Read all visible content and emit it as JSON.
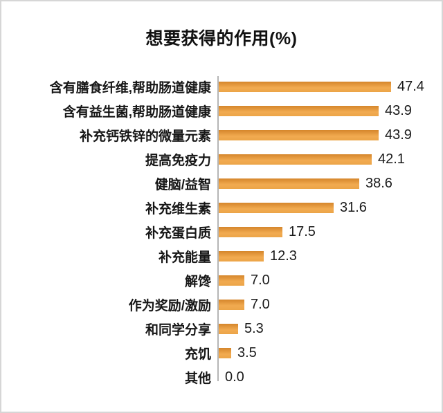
{
  "frame": {
    "background": "#ffffff",
    "border_color": "#d6d6d6"
  },
  "chart_data": {
    "type": "bar",
    "orientation": "horizontal",
    "title": "想要获得的作用(%)",
    "categories": [
      "含有膳食纤维,帮助肠道健康",
      "含有益生菌,帮助肠道健康",
      "补充钙铁锌的微量元素",
      "提高免疫力",
      "健脑/益智",
      "补充维生素",
      "补充蛋白质",
      "补充能量",
      "解馋",
      "作为奖励/激励",
      "和同学分享",
      "充饥",
      "其他"
    ],
    "values": [
      47.4,
      43.9,
      43.9,
      42.1,
      38.6,
      31.6,
      17.5,
      12.3,
      7.0,
      7.0,
      5.3,
      3.5,
      0.0
    ],
    "value_labels": [
      "47.4",
      "43.9",
      "43.9",
      "42.1",
      "38.6",
      "31.6",
      "17.5",
      "12.3",
      "7.0",
      "7.0",
      "5.3",
      "3.5",
      "0.0"
    ],
    "xlim": [
      0,
      50
    ],
    "data_labels_position": "outside-end",
    "grid": false,
    "legend": false,
    "bar_color_top": "#d5862b",
    "bar_color_mid": "#f2ab51",
    "bar_color_bottom": "#eca548",
    "axis_line_color": "#b5b5b5",
    "title_color": "#111111",
    "label_color": "#161616",
    "value_color": "#1a1a1a"
  }
}
